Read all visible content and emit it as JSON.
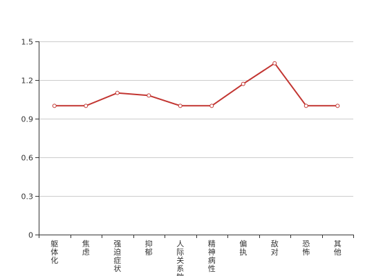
{
  "chart_data": {
    "type": "line",
    "categories": [
      "躯体化",
      "焦虑",
      "强迫症状",
      "抑郁",
      "人际关系敏感",
      "精神病性",
      "偏执",
      "敌对",
      "恐怖",
      "其他"
    ],
    "series": [
      {
        "values": [
          1.0,
          1.0,
          1.1,
          1.08,
          1.0,
          1.0,
          1.17,
          1.33,
          1.0,
          1.0
        ]
      }
    ],
    "yticks": [
      0,
      0.3,
      0.6,
      0.9,
      1.2,
      1.5
    ],
    "ylim": [
      0,
      1.5
    ],
    "title": "",
    "xlabel": "",
    "ylabel": "",
    "grid": "horizontal",
    "colors": {
      "line": "#c23531",
      "grid": "#cccccc",
      "axis": "#333333"
    }
  }
}
